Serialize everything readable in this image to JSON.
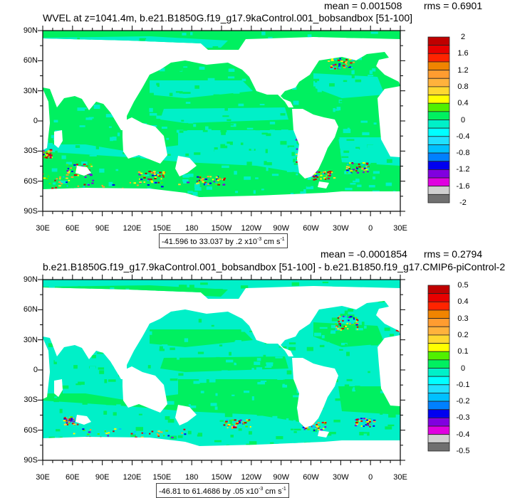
{
  "chart_data": [
    {
      "type": "heatmap",
      "title": "WVEL at z=1041.4m, b.e21.B1850G.f19_g17.9kaControl.001_bobsandbox [51-100]",
      "mean_label": "mean = 0.001508",
      "rms_label": "rms = 0.6901",
      "info": {
        "text": "-41.596 to 33.037 by .2 x10",
        "exp": "-3",
        "unit": " cm s",
        "unit_exp": "-1"
      },
      "colorbar": {
        "labels": [
          "2",
          "1.6",
          "1.2",
          "0.8",
          "0.4",
          "0",
          "-0.4",
          "-0.8",
          "-1.2",
          "-1.6",
          "-2"
        ],
        "colors": [
          "#c00000",
          "#e80000",
          "#ff2400",
          "#f08400",
          "#ff9c30",
          "#ffb23c",
          "#ffd830",
          "#ffff00",
          "#50f000",
          "#00f060",
          "#00f0c8",
          "#00ffff",
          "#20e0ff",
          "#00c0ff",
          "#0080ff",
          "#0000f0",
          "#8000e0",
          "#e000e0",
          "#d0d0d0",
          "#707070"
        ]
      },
      "lat_ticks": [
        "90N",
        "60N",
        "30N",
        "0",
        "30S",
        "60S",
        "90S"
      ],
      "lon_ticks": [
        "30E",
        "60E",
        "90E",
        "120E",
        "150E",
        "180",
        "150W",
        "120W",
        "90W",
        "60W",
        "30W",
        "0",
        "30E"
      ]
    },
    {
      "type": "heatmap",
      "title": "b.e21.B1850G.f19_g17.9kaControl.001_bobsandbox [51-100] - b.e21.B1850.f19_g17.CMIP6-piControl-2",
      "mean_label": "mean = -0.0001854",
      "rms_label": "rms = 0.2794",
      "info": {
        "text": "-46.81 to 61.4686 by .05 x10",
        "exp": "-3",
        "unit": " cm s",
        "unit_exp": "-1"
      },
      "colorbar": {
        "labels": [
          "0.5",
          "0.4",
          "0.3",
          "0.2",
          "0.1",
          "0",
          "-0.1",
          "-0.2",
          "-0.3",
          "-0.4",
          "-0.5"
        ],
        "colors": [
          "#c00000",
          "#e80000",
          "#ff2400",
          "#f08400",
          "#ff9c30",
          "#ffb23c",
          "#ffd830",
          "#ffff00",
          "#50f000",
          "#00f060",
          "#00f0c8",
          "#00ffff",
          "#20e0ff",
          "#00c0ff",
          "#0080ff",
          "#0000f0",
          "#8000e0",
          "#e000e0",
          "#d0d0d0",
          "#707070"
        ]
      },
      "lat_ticks": [
        "90N",
        "60N",
        "30N",
        "0",
        "30S",
        "60S",
        "90S"
      ],
      "lon_ticks": [
        "30E",
        "60E",
        "90E",
        "120E",
        "150E",
        "180",
        "150W",
        "120W",
        "90W",
        "60W",
        "30W",
        "0",
        "30E"
      ]
    }
  ]
}
